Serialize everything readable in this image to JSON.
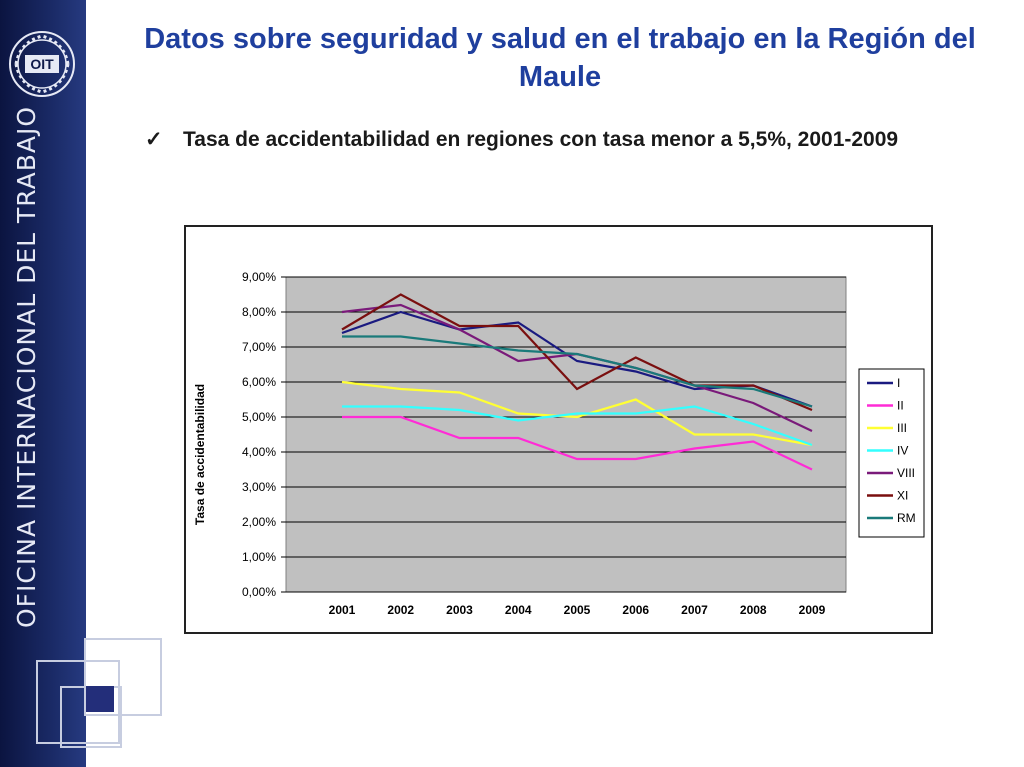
{
  "slide": {
    "title": "Datos sobre seguridad y salud en el trabajo en la Región del Maule",
    "bullet_mark": "✓",
    "bullet_text": "Tasa de accidentabilidad en regiones con tasa menor a 5,5%, 2001-2009",
    "sidebar_text": "OFICINA INTERNACIONAL DEL TRABAJO",
    "logo_text": "OIT"
  },
  "chart_data": {
    "type": "line",
    "title": "",
    "xlabel": "",
    "ylabel": "Tasa de accidentabilidad",
    "categories": [
      "2001",
      "2002",
      "2003",
      "2004",
      "2005",
      "2006",
      "2007",
      "2008",
      "2009"
    ],
    "ylim": [
      0,
      9
    ],
    "yticks": [
      "0,00%",
      "1,00%",
      "2,00%",
      "3,00%",
      "4,00%",
      "5,00%",
      "6,00%",
      "7,00%",
      "8,00%",
      "9,00%"
    ],
    "grid": true,
    "plot_background": "#c0c0c0",
    "legend": "right",
    "series": [
      {
        "name": "I",
        "color": "#1a1a80",
        "values": [
          7.4,
          8.0,
          7.5,
          7.7,
          6.6,
          6.3,
          5.8,
          5.9,
          5.3
        ]
      },
      {
        "name": "II",
        "color": "#ff2bd6",
        "values": [
          5.0,
          5.0,
          4.4,
          4.4,
          3.8,
          3.8,
          4.1,
          4.3,
          3.5
        ]
      },
      {
        "name": "III",
        "color": "#ffff33",
        "values": [
          6.0,
          5.8,
          5.7,
          5.1,
          5.0,
          5.5,
          4.5,
          4.5,
          4.2
        ]
      },
      {
        "name": "IV",
        "color": "#33ffff",
        "values": [
          5.3,
          5.3,
          5.2,
          4.9,
          5.1,
          5.1,
          5.3,
          4.8,
          4.2
        ]
      },
      {
        "name": "VIII",
        "color": "#7a1a7a",
        "values": [
          8.0,
          8.2,
          7.5,
          6.6,
          6.8,
          6.4,
          5.9,
          5.4,
          4.6
        ]
      },
      {
        "name": "XI",
        "color": "#7a0f0f",
        "values": [
          7.5,
          8.5,
          7.6,
          7.6,
          5.8,
          6.7,
          5.9,
          5.9,
          5.2
        ]
      },
      {
        "name": "RM",
        "color": "#1a7a7a",
        "values": [
          7.3,
          7.3,
          7.1,
          6.9,
          6.8,
          6.4,
          5.9,
          5.8,
          5.3
        ]
      }
    ]
  }
}
